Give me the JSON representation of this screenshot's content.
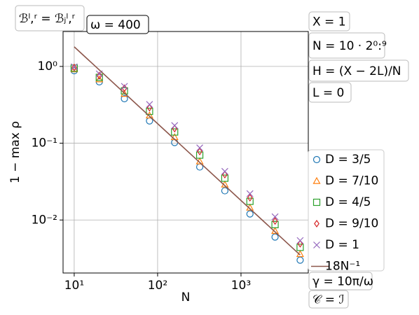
{
  "chart_data": {
    "type": "scatter",
    "xlabel": "N",
    "ylabel": "1 − max ρ",
    "log_x": true,
    "log_y": true,
    "grid": true,
    "legend": "right",
    "xlim": [
      7.35,
      6410
    ],
    "ylim": [
      0.00204,
      2.85
    ],
    "xticks": [
      {
        "value": 10,
        "label": "10¹"
      },
      {
        "value": 100,
        "label": "10²"
      },
      {
        "value": 1000,
        "label": "10³"
      }
    ],
    "yticks": [
      {
        "value": 0.01,
        "label": "10⁻²"
      },
      {
        "value": 0.1,
        "label": "10⁻¹"
      },
      {
        "value": 1,
        "label": "10⁰"
      }
    ],
    "x": [
      10,
      20,
      40,
      80,
      160,
      320,
      640,
      1280,
      2560,
      5120
    ],
    "series": [
      {
        "name": "D = 3/5",
        "color": "#1f77b4",
        "marker": "circle",
        "values": [
          0.88,
          0.63,
          0.38,
          0.195,
          0.102,
          0.049,
          0.024,
          0.012,
          0.006,
          0.003
        ]
      },
      {
        "name": "D = 7/10",
        "color": "#ff7f0e",
        "marker": "triangle",
        "values": [
          0.92,
          0.68,
          0.44,
          0.23,
          0.12,
          0.058,
          0.029,
          0.0145,
          0.0072,
          0.0036
        ]
      },
      {
        "name": "D = 4/5",
        "color": "#2ca02c",
        "marker": "square",
        "values": [
          0.95,
          0.72,
          0.48,
          0.26,
          0.14,
          0.07,
          0.035,
          0.0175,
          0.0087,
          0.0044
        ]
      },
      {
        "name": "D = 9/10",
        "color": "#d62728",
        "marker": "diamond",
        "values": [
          0.97,
          0.76,
          0.52,
          0.29,
          0.155,
          0.078,
          0.039,
          0.0195,
          0.0097,
          0.0049
        ]
      },
      {
        "name": "D = 1",
        "color": "#9467bd",
        "marker": "x",
        "values": [
          0.99,
          0.8,
          0.55,
          0.32,
          0.17,
          0.087,
          0.043,
          0.022,
          0.011,
          0.0054
        ]
      },
      {
        "name": "18N⁻¹",
        "color": "#8c564b",
        "marker": "line",
        "x": [
          10,
          5120
        ],
        "values": [
          1.8,
          0.0035
        ]
      }
    ],
    "annotations": [
      "ℬˡ,ʳ = ℬⱼˡ,ʳ",
      "ω = 400",
      "X = 1",
      "N = 10 · 2⁰:⁹",
      "H = (X − 2L)/N",
      "L = 0",
      "γ = 10π/ω",
      "𝒞 = ℐ"
    ]
  }
}
